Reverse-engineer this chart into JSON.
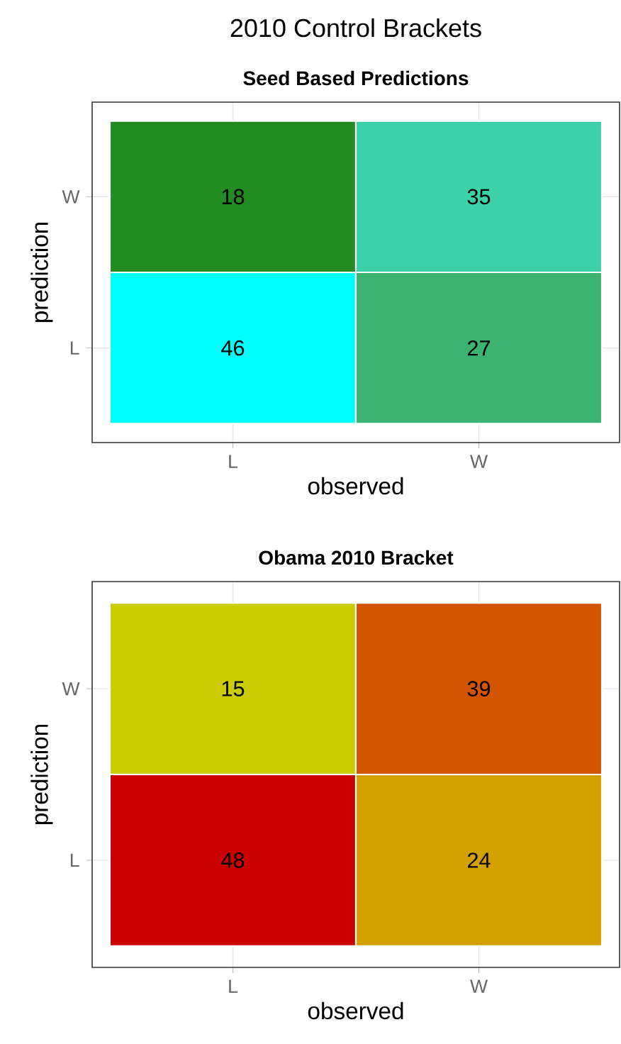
{
  "chart_data": [
    {
      "type": "heatmap",
      "title": "2010 Control Brackets",
      "subtitle": "Seed Based Predictions",
      "xlabel": "observed",
      "ylabel": "prediction",
      "categories": [
        "L",
        "W"
      ],
      "y_categories": [
        "W",
        "L"
      ],
      "cells": [
        [
          18,
          35
        ],
        [
          46,
          27
        ]
      ],
      "colors": [
        [
          "#228b22",
          "#3cd1a8"
        ],
        [
          "#00ffff",
          "#3cb371"
        ]
      ],
      "grid": true,
      "data_labels": true
    },
    {
      "type": "heatmap",
      "subtitle": "Obama 2010 Bracket",
      "xlabel": "observed",
      "ylabel": "prediction",
      "categories": [
        "L",
        "W"
      ],
      "y_categories": [
        "W",
        "L"
      ],
      "cells": [
        [
          15,
          39
        ],
        [
          48,
          24
        ]
      ],
      "colors": [
        [
          "#cccc00",
          "#d45500"
        ],
        [
          "#cc0000",
          "#d4a000"
        ]
      ],
      "grid": true,
      "data_labels": true
    }
  ]
}
